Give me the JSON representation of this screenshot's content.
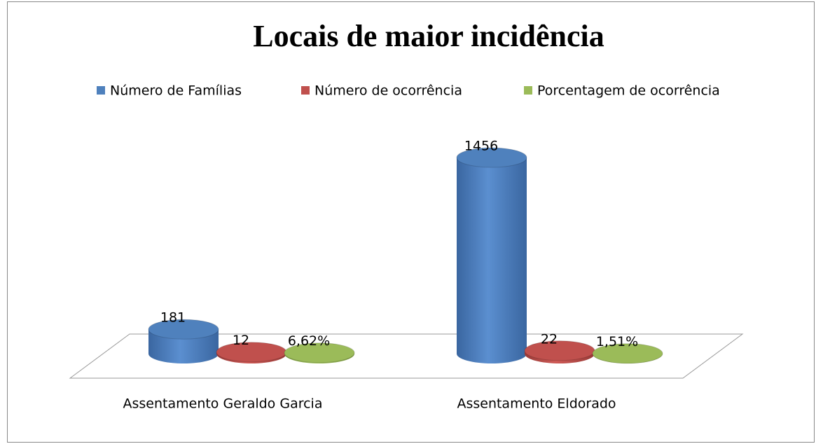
{
  "chart_data": {
    "type": "bar3d",
    "title": "Locais de maior incidência",
    "categories": [
      "Assentamento Geraldo Garcia",
      "Assentamento Eldorado"
    ],
    "series": [
      {
        "name": "Número de Famílias",
        "color": "#4f81bd",
        "values": [
          181,
          1456
        ]
      },
      {
        "name": "Número de ocorrência",
        "color": "#c0504d",
        "values": [
          12,
          22
        ]
      },
      {
        "name": "Porcentagem de ocorrência",
        "color": "#9bbb59",
        "values": [
          6.62,
          1.51
        ],
        "value_labels": [
          "6,62%",
          "1,51%"
        ]
      }
    ],
    "legend": "top"
  }
}
